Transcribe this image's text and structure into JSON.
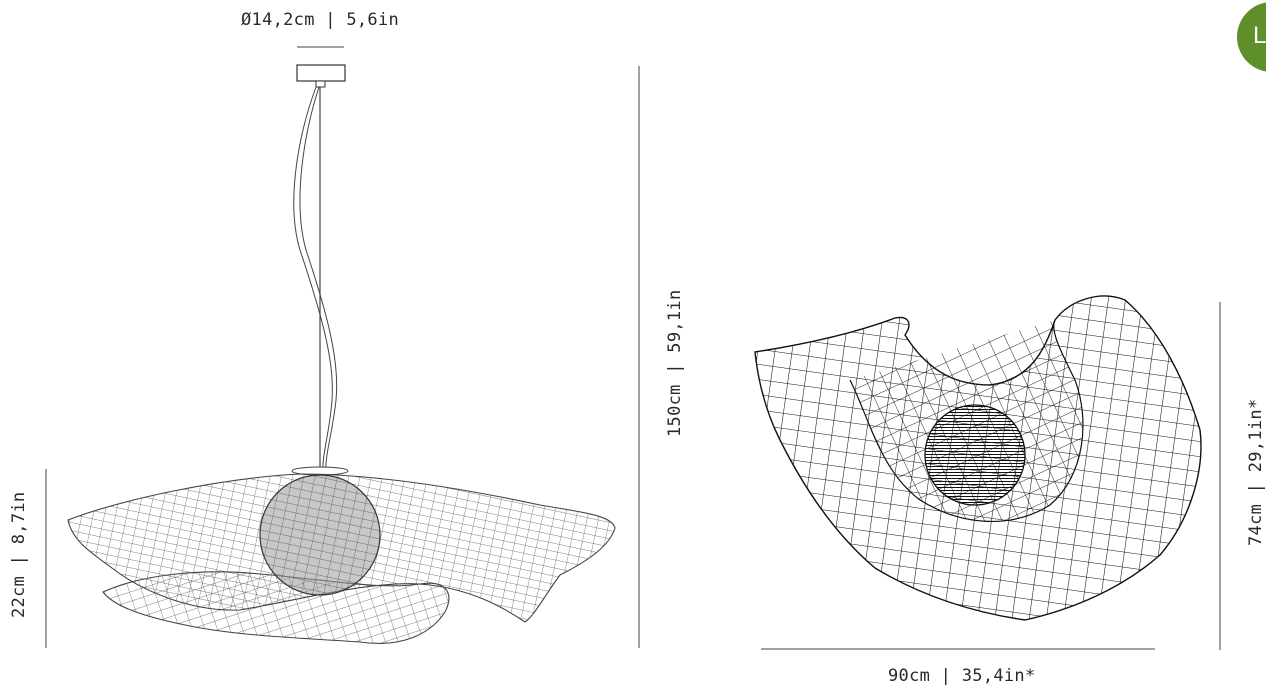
{
  "dimensions": {
    "canopy_diameter": "Ø14,2cm | 5,6in",
    "total_height": "150cm | 59,1in",
    "shade_height": "22cm | 8,7in",
    "front_height": "74cm | 29,1in*",
    "front_width": "90cm | 35,4in*"
  },
  "badge": {
    "letter": "L",
    "color": "#5e8f2a"
  },
  "icons": {
    "badge": "size-badge"
  }
}
